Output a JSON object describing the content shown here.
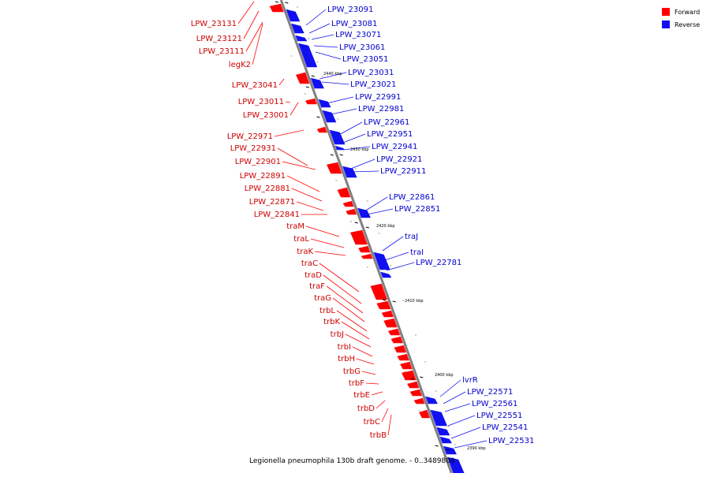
{
  "colors": {
    "forward": "#ff0000",
    "reverse": "#1010f0",
    "backbone": "#909090",
    "label_forward": "#cc0000",
    "label_reverse": "#0000cc"
  },
  "legend": {
    "forward_label": "Forward",
    "reverse_label": "Reverse"
  },
  "caption": "Legionella pneumophila 130b draft genome. - 0..3489800",
  "ticks": [
    "2440 kbp",
    "2430 kbp",
    "2420 kbp",
    "2410 kbp",
    "2400 kbp",
    "2390 kbp"
  ],
  "forward_genes": [
    "LPW_23131",
    "LPW_23121",
    "LPW_23111",
    "legK2",
    "LPW_23041",
    "LPW_23011",
    "LPW_23001",
    "LPW_22971",
    "LPW_22931",
    "LPW_22901",
    "LPW_22891",
    "LPW_22881",
    "LPW_22871",
    "LPW_22841",
    "traM",
    "traL",
    "traK",
    "traC",
    "traD",
    "traF",
    "traG",
    "trbL",
    "trbK",
    "trbJ",
    "trbI",
    "trbH",
    "trbG",
    "trbF",
    "trbE",
    "trbD",
    "trbC",
    "trbB"
  ],
  "reverse_genes": [
    "LPW_23091",
    "LPW_23081",
    "LPW_23071",
    "LPW_23061",
    "LPW_23051",
    "LPW_23031",
    "LPW_23021",
    "LPW_22991",
    "LPW_22981",
    "LPW_22961",
    "LPW_22951",
    "LPW_22941",
    "LPW_22921",
    "LPW_22911",
    "LPW_22861",
    "LPW_22851",
    "traJ",
    "traI",
    "LPW_22781",
    "lvrR",
    "LPW_22571",
    "LPW_22561",
    "LPW_22551",
    "LPW_22541",
    "LPW_22531"
  ]
}
